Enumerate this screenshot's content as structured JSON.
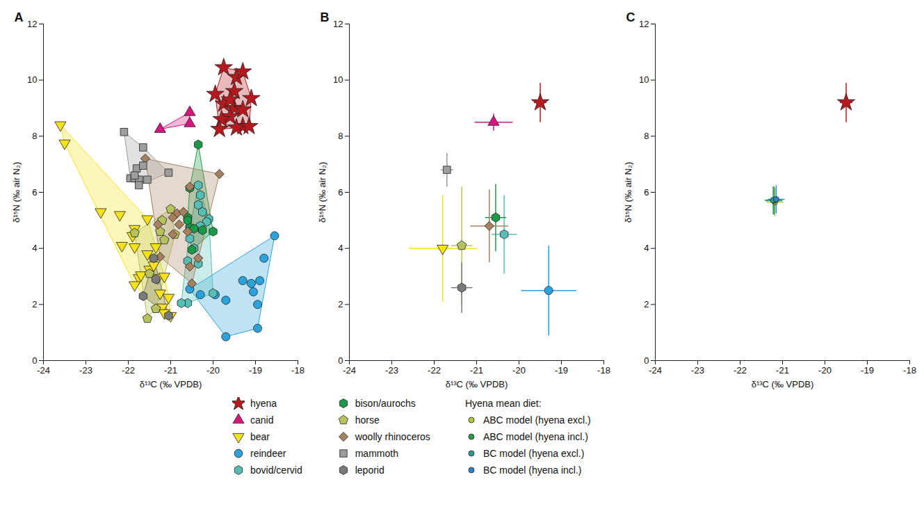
{
  "chart_data": [
    {
      "type": "scatter",
      "title": "A",
      "x_label": "δ¹³C (‰ VPDB)",
      "y_label": "δ¹⁵N (‰ air N₂)",
      "xlim": [
        -24,
        -18
      ],
      "ylim": [
        0,
        12
      ],
      "xticks": [
        -24,
        -23,
        -22,
        -21,
        -20,
        -19,
        -18
      ],
      "yticks": [
        0,
        2,
        4,
        6,
        8,
        10,
        12
      ],
      "grid": false,
      "legend": "bottom",
      "series": [
        {
          "name": "hyena",
          "color": "#b5191e",
          "marker": "star",
          "x": [
            -19.75,
            -19.45,
            -19.3,
            -19.95,
            -19.5,
            -19.1,
            -19.75,
            -19.5,
            -19.3,
            -19.6,
            -19.8,
            -19.3,
            -19.45,
            -19.85,
            -19.15,
            -19.6
          ],
          "y": [
            10.45,
            10.1,
            10.3,
            9.5,
            9.6,
            9.35,
            9.15,
            9.0,
            8.95,
            8.7,
            8.6,
            8.35,
            8.3,
            8.25,
            8.35,
            9.3
          ]
        },
        {
          "name": "canid",
          "color": "#d6157f",
          "marker": "triangle",
          "x": [
            -21.25,
            -20.55,
            -20.55
          ],
          "y": [
            8.25,
            8.85,
            8.45
          ]
        },
        {
          "name": "bear",
          "color": "#f7e11a",
          "marker": "triangle-down",
          "x": [
            -23.6,
            -23.5,
            -22.65,
            -22.2,
            -22.15,
            -21.85,
            -21.9,
            -21.55,
            -21.85,
            -21.35,
            -21.55,
            -21.5,
            -21.4,
            -21.3,
            -21.15,
            -21.75,
            -21.85,
            -21.7,
            -21.25,
            -21.05,
            -21.2,
            -21.0,
            -21.15
          ],
          "y": [
            8.4,
            7.75,
            5.3,
            5.2,
            4.1,
            4.7,
            4.45,
            5.05,
            4.05,
            4.05,
            3.8,
            3.25,
            3.4,
            2.95,
            3.0,
            2.95,
            2.7,
            3.05,
            2.4,
            2.25,
            1.9,
            1.6,
            1.7
          ]
        },
        {
          "name": "reindeer",
          "color": "#2aa3dd",
          "marker": "circle",
          "x": [
            -18.55,
            -20.55,
            -20.3,
            -19.95,
            -19.7,
            -19.3,
            -19.1,
            -19.05,
            -18.9,
            -18.8,
            -18.95,
            -18.95,
            -19.7
          ],
          "y": [
            4.45,
            2.55,
            2.35,
            2.35,
            2.15,
            2.85,
            2.75,
            2.45,
            2.85,
            3.65,
            2.0,
            1.15,
            0.85
          ]
        },
        {
          "name": "bovid/cervid",
          "color": "#56bfb5",
          "marker": "hexagon",
          "x": [
            -20.35,
            -20.3,
            -20.35,
            -20.25,
            -20.1,
            -20.15,
            -20.3,
            -20.55,
            -20.45,
            -20.6,
            -20.35,
            -20.0,
            -20.6,
            -20.75,
            -20.55
          ],
          "y": [
            6.25,
            5.9,
            5.55,
            5.3,
            5.05,
            4.95,
            4.8,
            4.35,
            4.0,
            3.55,
            3.45,
            2.4,
            2.05,
            2.05,
            4.7
          ]
        },
        {
          "name": "bison/aurochs",
          "color": "#1a9a48",
          "marker": "hexagon",
          "x": [
            -20.35,
            -20.55,
            -20.6,
            -20.55,
            -20.25,
            -20.0,
            -20.45,
            -20.5,
            -20.6
          ],
          "y": [
            7.7,
            6.15,
            5.1,
            4.75,
            4.65,
            4.6,
            4.7,
            3.95,
            5.0
          ]
        },
        {
          "name": "horse",
          "color": "#b7c25a",
          "marker": "pentagon",
          "x": [
            -21.0,
            -21.2,
            -21.25,
            -21.85,
            -21.15,
            -21.5,
            -21.55,
            -21.35,
            -20.9
          ],
          "y": [
            5.4,
            5.0,
            4.6,
            4.55,
            4.3,
            3.1,
            1.5,
            1.85,
            4.5
          ]
        },
        {
          "name": "woolly rhinoceros",
          "color": "#a6815f",
          "marker": "diamond",
          "x": [
            -21.6,
            -19.85,
            -20.55,
            -20.85,
            -20.7,
            -20.95,
            -20.8,
            -20.95,
            -20.6,
            -20.55,
            -20.35,
            -21.25,
            -20.5,
            -21.3
          ],
          "y": [
            7.2,
            6.65,
            6.2,
            5.25,
            5.3,
            5.1,
            4.85,
            4.5,
            4.6,
            3.35,
            3.65,
            3.7,
            2.75,
            4.85
          ]
        },
        {
          "name": "mammoth",
          "color": "#9d9d9d",
          "marker": "square",
          "x": [
            -22.1,
            -21.65,
            -21.05,
            -21.8,
            -21.95,
            -21.85,
            -21.75,
            -21.55,
            -21.75,
            -21.65,
            -21.85
          ],
          "y": [
            8.15,
            7.6,
            6.7,
            6.85,
            6.5,
            6.5,
            6.45,
            6.45,
            6.25,
            6.95,
            6.6
          ]
        },
        {
          "name": "leporid",
          "color": "#7a7a7a",
          "marker": "hexagon",
          "x": [
            -21.4,
            -21.35,
            -21.65,
            -21.05
          ],
          "y": [
            3.65,
            2.9,
            2.3,
            1.6
          ]
        }
      ]
    },
    {
      "type": "scatter",
      "title": "B",
      "x_label": "δ¹³C (‰ VPDB)",
      "y_label": "δ¹⁵N (‰ air N₂)",
      "xlim": [
        -24,
        -18
      ],
      "ylim": [
        0,
        12
      ],
      "xticks": [
        -24,
        -23,
        -22,
        -21,
        -20,
        -19,
        -18
      ],
      "yticks": [
        0,
        2,
        4,
        6,
        8,
        10,
        12
      ],
      "grid": false,
      "series": [
        {
          "name": "hyena",
          "color": "#b5191e",
          "marker": "star",
          "x": [
            -19.5
          ],
          "y": [
            9.2
          ],
          "x_error": [
            0.15
          ],
          "y_error": [
            0.7
          ]
        },
        {
          "name": "canid",
          "color": "#d6157f",
          "marker": "triangle",
          "x": [
            -20.6
          ],
          "y": [
            8.5
          ],
          "x_error": [
            0.45
          ],
          "y_error": [
            0.3
          ]
        },
        {
          "name": "bear",
          "color": "#f7e11a",
          "marker": "triangle-down",
          "x": [
            -21.8
          ],
          "y": [
            4.0
          ],
          "x_error": [
            0.8
          ],
          "y_error": [
            1.9
          ]
        },
        {
          "name": "reindeer",
          "color": "#2aa3dd",
          "marker": "circle",
          "x": [
            -19.3
          ],
          "y": [
            2.5
          ],
          "x_error": [
            0.65
          ],
          "y_error": [
            1.6
          ]
        },
        {
          "name": "bovid/cervid",
          "color": "#56bfb5",
          "marker": "hexagon",
          "x": [
            -20.35
          ],
          "y": [
            4.5
          ],
          "x_error": [
            0.3
          ],
          "y_error": [
            1.4
          ]
        },
        {
          "name": "bison/aurochs",
          "color": "#1a9a48",
          "marker": "hexagon",
          "x": [
            -20.55
          ],
          "y": [
            5.1
          ],
          "x_error": [
            0.25
          ],
          "y_error": [
            1.2
          ]
        },
        {
          "name": "horse",
          "color": "#b7c25a",
          "marker": "pentagon",
          "x": [
            -21.35
          ],
          "y": [
            4.1
          ],
          "x_error": [
            0.25
          ],
          "y_error": [
            2.1
          ]
        },
        {
          "name": "woolly rhinoceros",
          "color": "#a6815f",
          "marker": "diamond",
          "x": [
            -20.7
          ],
          "y": [
            4.8
          ],
          "x_error": [
            0.45
          ],
          "y_error": [
            1.3
          ]
        },
        {
          "name": "mammoth",
          "color": "#9d9d9d",
          "marker": "square",
          "x": [
            -21.7
          ],
          "y": [
            6.8
          ],
          "x_error": [
            0.15
          ],
          "y_error": [
            0.6
          ]
        },
        {
          "name": "leporid",
          "color": "#7a7a7a",
          "marker": "hexagon",
          "x": [
            -21.35
          ],
          "y": [
            2.6
          ],
          "x_error": [
            0.25
          ],
          "y_error": [
            0.9
          ]
        }
      ]
    },
    {
      "type": "scatter",
      "title": "C",
      "x_label": "δ¹³C (‰ VPDB)",
      "y_label": "δ¹⁵N (‰ air N₂)",
      "xlim": [
        -24,
        -18
      ],
      "ylim": [
        0,
        12
      ],
      "xticks": [
        -24,
        -23,
        -22,
        -21,
        -20,
        -19,
        -18
      ],
      "yticks": [
        0,
        2,
        4,
        6,
        8,
        10,
        12
      ],
      "grid": false,
      "legend_title": "Hyena mean diet:",
      "series": [
        {
          "name": "hyena",
          "color": "#b5191e",
          "marker": "star",
          "x": [
            -19.5
          ],
          "y": [
            9.2
          ],
          "x_error": [
            0.15
          ],
          "y_error": [
            0.7
          ]
        },
        {
          "name": "ABC model (hyena excl.)",
          "color": "#b5c936",
          "marker": "circle",
          "x": [
            -21.18
          ],
          "y": [
            5.65
          ],
          "x_error": [
            0.2
          ],
          "y_error": [
            0.5
          ]
        },
        {
          "name": "ABC model (hyena incl.)",
          "color": "#2e9a4a",
          "marker": "circle",
          "x": [
            -21.2
          ],
          "y": [
            5.7
          ],
          "x_error": [
            0.2
          ],
          "y_error": [
            0.5
          ]
        },
        {
          "name": "BC model (hyena excl.)",
          "color": "#2a9d8f",
          "marker": "circle",
          "x": [
            -21.22
          ],
          "y": [
            5.72
          ],
          "x_error": [
            0.2
          ],
          "y_error": [
            0.5
          ]
        },
        {
          "name": "BC model (hyena incl.)",
          "color": "#2a86c9",
          "marker": "circle",
          "x": [
            -21.15
          ],
          "y": [
            5.75
          ],
          "x_error": [
            0.2
          ],
          "y_error": [
            0.5
          ]
        }
      ]
    }
  ]
}
